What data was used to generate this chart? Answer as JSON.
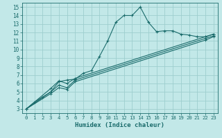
{
  "xlabel": "Humidex (Indice chaleur)",
  "ylabel": "",
  "xlim": [
    -0.5,
    23.5
  ],
  "ylim": [
    2.5,
    15.5
  ],
  "xticks": [
    0,
    1,
    2,
    3,
    4,
    5,
    6,
    7,
    8,
    9,
    10,
    11,
    12,
    13,
    14,
    15,
    16,
    17,
    18,
    19,
    20,
    21,
    22,
    23
  ],
  "yticks": [
    3,
    4,
    5,
    6,
    7,
    8,
    9,
    10,
    11,
    12,
    13,
    14,
    15
  ],
  "bg_color": "#c2e8e8",
  "grid_color": "#9ecece",
  "line_color": "#1a6b6b",
  "line1_x": [
    0,
    1,
    2,
    3,
    4,
    5,
    6,
    7,
    8,
    9,
    10,
    11,
    12,
    13,
    14,
    15,
    16,
    17,
    18,
    19,
    20,
    21,
    22,
    23
  ],
  "line1_y": [
    3.0,
    3.8,
    4.4,
    5.0,
    6.2,
    6.4,
    6.5,
    7.2,
    7.5,
    9.2,
    11.0,
    13.2,
    14.0,
    14.0,
    15.0,
    13.2,
    12.1,
    12.2,
    12.2,
    11.8,
    11.7,
    11.5,
    11.5,
    11.8
  ],
  "line2_x": [
    0,
    3,
    4,
    5,
    6,
    22,
    23
  ],
  "line2_y": [
    3.0,
    5.4,
    6.3,
    6.0,
    6.6,
    11.5,
    11.8
  ],
  "line3_x": [
    0,
    3,
    4,
    5,
    6,
    22,
    23
  ],
  "line3_y": [
    3.0,
    5.0,
    5.8,
    5.5,
    6.4,
    11.3,
    11.6
  ],
  "line4_x": [
    0,
    3,
    4,
    5,
    6,
    22,
    23
  ],
  "line4_y": [
    3.0,
    4.8,
    5.5,
    5.3,
    6.2,
    11.1,
    11.5
  ]
}
